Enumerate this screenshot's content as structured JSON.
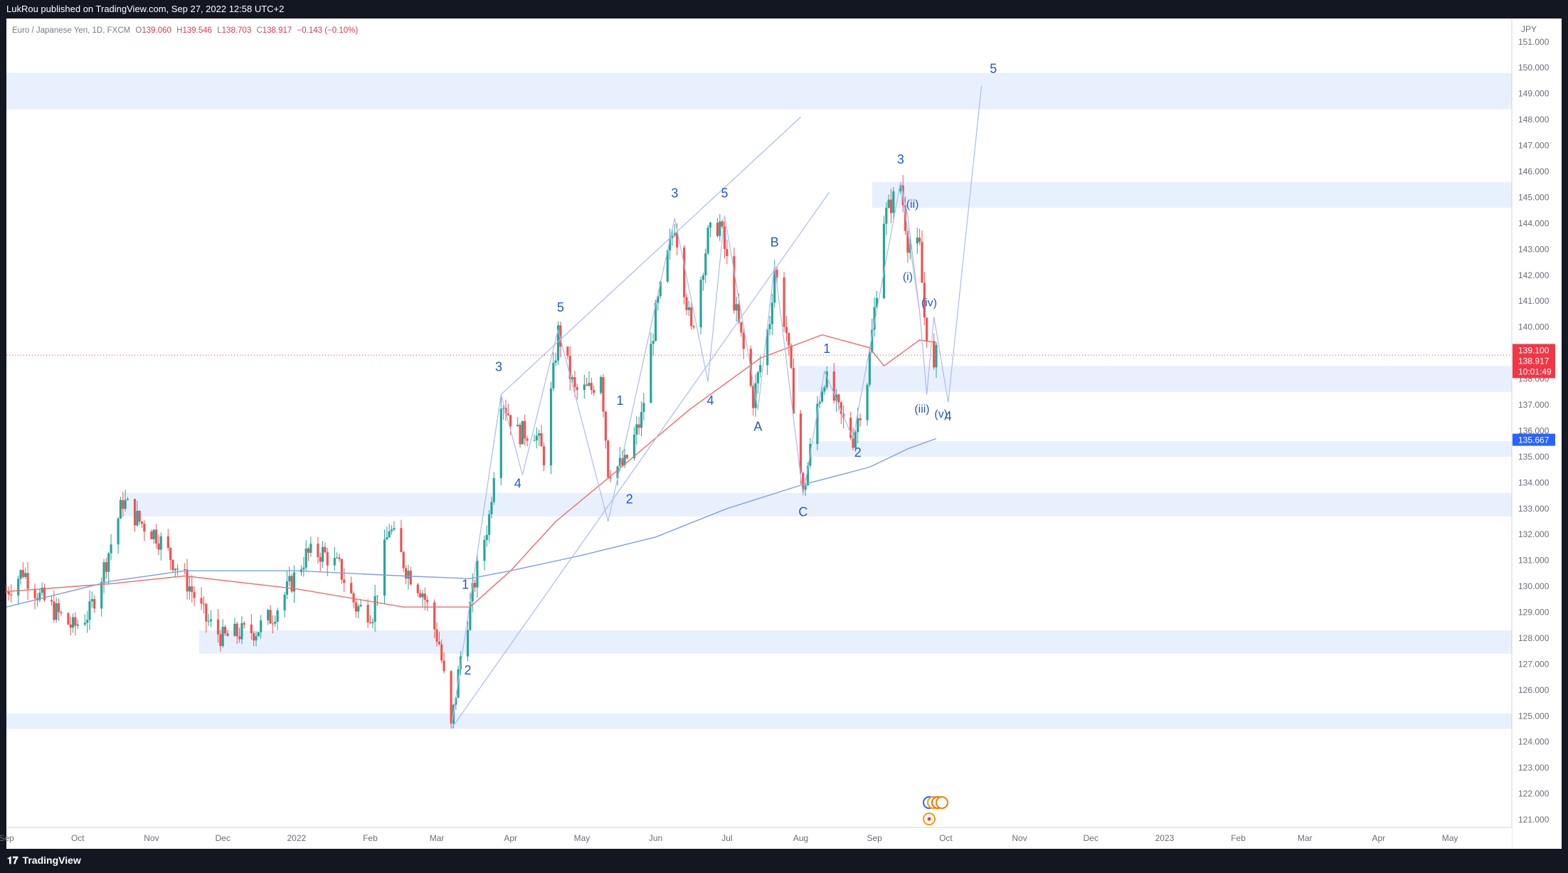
{
  "header": {
    "publisher_line": "LukRou published on TradingView.com, Sep 27, 2022 12:58 UTC+2"
  },
  "footer": {
    "brand": "TradingView",
    "brand_icon": "tradingview-logo-icon"
  },
  "colors": {
    "bull": "#26a69a",
    "bear": "#ef5350",
    "zone": "#e8f0fe",
    "wave_line": "#aabcec",
    "wave_label": "#2159c9",
    "ma_fast": "#ef6b6b",
    "ma_slow": "#7ea0e0",
    "price_tag": "#f23645",
    "ma_tag": "#2962ff"
  },
  "symbol_bar": {
    "name": "Euro / Japanese Yen, 1D, FXCM",
    "o_label": "O",
    "o_value": "139.060",
    "h_label": "H",
    "h_value": "139.546",
    "l_label": "L",
    "l_value": "138.703",
    "c_label": "C",
    "c_value": "138.917",
    "change": "−0.143 (−0.10%)"
  },
  "price_tags": {
    "last_price": "139.100",
    "close_price": "138.917",
    "countdown": "10:01:49",
    "ma_value": "135.667"
  },
  "chart_data": {
    "type": "candlestick",
    "currency": "JPY",
    "ylim": [
      120.7,
      151.9
    ],
    "y_ticks": [
      "121.000",
      "122.000",
      "123.000",
      "124.000",
      "125.000",
      "126.000",
      "127.000",
      "128.000",
      "129.000",
      "130.000",
      "131.000",
      "132.000",
      "133.000",
      "134.000",
      "135.000",
      "136.000",
      "137.000",
      "138.000",
      "139.000",
      "140.000",
      "141.000",
      "142.000",
      "143.000",
      "144.000",
      "145.000",
      "146.000",
      "147.000",
      "148.000",
      "149.000",
      "150.000",
      "151.000"
    ],
    "x_range": [
      "2021-09-01",
      "2023-05-27"
    ],
    "x_ticks": [
      {
        "date": "2021-09-01",
        "label": "Sep"
      },
      {
        "date": "2021-10-01",
        "label": "Oct"
      },
      {
        "date": "2021-11-01",
        "label": "Nov"
      },
      {
        "date": "2021-12-01",
        "label": "Dec"
      },
      {
        "date": "2022-01-01",
        "label": "2022"
      },
      {
        "date": "2022-02-01",
        "label": "Feb"
      },
      {
        "date": "2022-03-01",
        "label": "Mar"
      },
      {
        "date": "2022-04-01",
        "label": "Apr"
      },
      {
        "date": "2022-05-01",
        "label": "May"
      },
      {
        "date": "2022-06-01",
        "label": "Jun"
      },
      {
        "date": "2022-07-01",
        "label": "Jul"
      },
      {
        "date": "2022-08-01",
        "label": "Aug"
      },
      {
        "date": "2022-09-01",
        "label": "Sep"
      },
      {
        "date": "2022-10-01",
        "label": "Oct"
      },
      {
        "date": "2022-11-01",
        "label": "Nov"
      },
      {
        "date": "2022-12-01",
        "label": "Dec"
      },
      {
        "date": "2023-01-01",
        "label": "2023"
      },
      {
        "date": "2023-02-01",
        "label": "Feb"
      },
      {
        "date": "2023-03-01",
        "label": "Mar"
      },
      {
        "date": "2023-04-01",
        "label": "Apr"
      },
      {
        "date": "2023-05-01",
        "label": "May"
      }
    ],
    "price_path": [
      [
        "2021-09-01",
        129.8
      ],
      [
        "2021-09-08",
        130.6
      ],
      [
        "2021-09-15",
        129.6
      ],
      [
        "2021-09-22",
        129.0
      ],
      [
        "2021-09-29",
        128.4
      ],
      [
        "2021-10-06",
        129.0
      ],
      [
        "2021-10-13",
        131.0
      ],
      [
        "2021-10-20",
        133.3
      ],
      [
        "2021-10-27",
        132.5
      ],
      [
        "2021-11-03",
        132.0
      ],
      [
        "2021-11-10",
        131.0
      ],
      [
        "2021-11-17",
        130.0
      ],
      [
        "2021-11-24",
        128.7
      ],
      [
        "2021-12-01",
        128.0
      ],
      [
        "2021-12-08",
        128.2
      ],
      [
        "2021-12-15",
        128.3
      ],
      [
        "2021-12-22",
        128.9
      ],
      [
        "2021-12-29",
        130.0
      ],
      [
        "2022-01-05",
        131.2
      ],
      [
        "2022-01-12",
        131.3
      ],
      [
        "2022-01-19",
        130.7
      ],
      [
        "2022-01-26",
        129.2
      ],
      [
        "2022-02-02",
        129.0
      ],
      [
        "2022-02-09",
        132.3
      ],
      [
        "2022-02-16",
        130.7
      ],
      [
        "2022-02-23",
        129.8
      ],
      [
        "2022-03-02",
        127.8
      ],
      [
        "2022-03-07",
        124.5
      ],
      [
        "2022-03-11",
        127.3
      ],
      [
        "2022-03-17",
        130.2
      ],
      [
        "2022-03-23",
        132.7
      ],
      [
        "2022-03-28",
        137.3
      ],
      [
        "2022-04-04",
        135.9
      ],
      [
        "2022-04-11",
        136.0
      ],
      [
        "2022-04-15",
        135.0
      ],
      [
        "2022-04-21",
        139.8
      ],
      [
        "2022-04-28",
        137.5
      ],
      [
        "2022-05-05",
        137.6
      ],
      [
        "2022-05-09",
        138.3
      ],
      [
        "2022-05-12",
        134.5
      ],
      [
        "2022-05-19",
        134.7
      ],
      [
        "2022-05-26",
        136.5
      ],
      [
        "2022-06-01",
        140.5
      ],
      [
        "2022-06-09",
        144.0
      ],
      [
        "2022-06-16",
        139.8
      ],
      [
        "2022-06-23",
        143.5
      ],
      [
        "2022-06-28",
        144.0
      ],
      [
        "2022-07-05",
        140.5
      ],
      [
        "2022-07-12",
        137.2
      ],
      [
        "2022-07-19",
        140.3
      ],
      [
        "2022-07-21",
        142.3
      ],
      [
        "2022-07-26",
        139.8
      ],
      [
        "2022-08-02",
        133.5
      ],
      [
        "2022-08-08",
        137.0
      ],
      [
        "2022-08-11",
        138.1
      ],
      [
        "2022-08-18",
        136.5
      ],
      [
        "2022-08-23",
        135.7
      ],
      [
        "2022-08-29",
        138.0
      ],
      [
        "2022-09-05",
        144.2
      ],
      [
        "2022-09-12",
        145.5
      ],
      [
        "2022-09-15",
        143.3
      ],
      [
        "2022-09-20",
        143.0
      ],
      [
        "2022-09-22",
        140.4
      ],
      [
        "2022-09-26",
        138.2
      ],
      [
        "2022-09-27",
        138.9
      ]
    ],
    "moving_averages": [
      {
        "points": [
          [
            "2021-09-01",
            129.8
          ],
          [
            "2021-10-15",
            130.1
          ],
          [
            "2021-11-15",
            130.4
          ],
          [
            "2022-01-01",
            129.9
          ],
          [
            "2022-02-15",
            129.2
          ],
          [
            "2022-03-15",
            129.2
          ],
          [
            "2022-04-01",
            130.6
          ],
          [
            "2022-04-20",
            132.5
          ],
          [
            "2022-05-15",
            134.4
          ],
          [
            "2022-06-15",
            136.8
          ],
          [
            "2022-07-15",
            138.8
          ],
          [
            "2022-08-10",
            139.7
          ],
          [
            "2022-08-30",
            139.2
          ],
          [
            "2022-09-05",
            138.5
          ],
          [
            "2022-09-20",
            139.5
          ],
          [
            "2022-09-27",
            139.4
          ]
        ]
      },
      {
        "points": [
          [
            "2021-09-01",
            129.2
          ],
          [
            "2021-10-15",
            130.2
          ],
          [
            "2021-11-15",
            130.6
          ],
          [
            "2022-01-01",
            130.6
          ],
          [
            "2022-02-15",
            130.4
          ],
          [
            "2022-03-15",
            130.3
          ],
          [
            "2022-04-01",
            130.6
          ],
          [
            "2022-05-01",
            131.2
          ],
          [
            "2022-06-01",
            131.9
          ],
          [
            "2022-07-01",
            133.0
          ],
          [
            "2022-08-01",
            133.9
          ],
          [
            "2022-08-30",
            134.6
          ],
          [
            "2022-09-15",
            135.3
          ],
          [
            "2022-09-27",
            135.7
          ]
        ]
      }
    ],
    "zones": [
      {
        "from": "2021-09-01",
        "to": "2023-05-27",
        "low": 148.4,
        "high": 149.8
      },
      {
        "from": "2022-08-31",
        "to": "2023-05-27",
        "low": 144.6,
        "high": 145.6
      },
      {
        "from": "2022-07-31",
        "to": "2023-05-27",
        "low": 137.5,
        "high": 138.5
      },
      {
        "from": "2022-08-06",
        "to": "2023-05-27",
        "low": 135.0,
        "high": 135.6
      },
      {
        "from": "2021-10-20",
        "to": "2023-05-27",
        "low": 132.7,
        "high": 133.6
      },
      {
        "from": "2021-11-21",
        "to": "2023-05-27",
        "low": 127.4,
        "high": 128.3
      },
      {
        "from": "2021-09-01",
        "to": "2023-05-27",
        "low": 124.5,
        "high": 125.1
      }
    ],
    "wave_lines": [
      {
        "points": [
          [
            "2022-03-07",
            124.5
          ],
          [
            "2022-03-28",
            137.4
          ],
          [
            "2022-04-06",
            134.3
          ],
          [
            "2022-04-21",
            139.9
          ],
          [
            "2022-05-12",
            132.5
          ],
          [
            "2022-06-09",
            144.2
          ],
          [
            "2022-06-23",
            137.9
          ],
          [
            "2022-06-30",
            144.3
          ]
        ]
      },
      {
        "points": [
          [
            "2022-03-28",
            137.4
          ],
          [
            "2022-08-01",
            148.1
          ]
        ]
      },
      {
        "points": [
          [
            "2022-03-07",
            124.5
          ],
          [
            "2022-08-13",
            145.2
          ]
        ]
      },
      {
        "points": [
          [
            "2022-06-30",
            144.3
          ],
          [
            "2022-07-14",
            136.8
          ],
          [
            "2022-07-21",
            142.4
          ],
          [
            "2022-08-02",
            133.5
          ],
          [
            "2022-08-11",
            138.3
          ],
          [
            "2022-08-23",
            135.7
          ],
          [
            "2022-09-12",
            145.6
          ],
          [
            "2022-09-20",
            140.6
          ],
          [
            "2022-09-23",
            137.4
          ],
          [
            "2022-09-26",
            140.4
          ],
          [
            "2022-10-02",
            137.1
          ],
          [
            "2022-10-16",
            149.3
          ]
        ]
      },
      {
        "points": [
          [
            "2022-09-12",
            145.6
          ],
          [
            "2022-09-15",
            144.3
          ],
          [
            "2022-09-20",
            140.6
          ]
        ]
      }
    ],
    "wave_labels": [
      {
        "text": "2",
        "date": "2022-03-14",
        "price": 126.6
      },
      {
        "text": "1",
        "date": "2022-03-13",
        "price": 129.9
      },
      {
        "text": "3",
        "date": "2022-03-27",
        "price": 138.3
      },
      {
        "text": "4",
        "date": "2022-04-04",
        "price": 133.8
      },
      {
        "text": "5",
        "date": "2022-04-22",
        "price": 140.6
      },
      {
        "text": "1",
        "date": "2022-05-17",
        "price": 137.0
      },
      {
        "text": "2",
        "date": "2022-05-21",
        "price": 133.2
      },
      {
        "text": "3",
        "date": "2022-06-09",
        "price": 145.0
      },
      {
        "text": "4",
        "date": "2022-06-24",
        "price": 137.0
      },
      {
        "text": "5",
        "date": "2022-06-30",
        "price": 145.0
      },
      {
        "text": "A",
        "date": "2022-07-14",
        "price": 136.0
      },
      {
        "text": "B",
        "date": "2022-07-21",
        "price": 143.1
      },
      {
        "text": "C",
        "date": "2022-08-02",
        "price": 132.7
      },
      {
        "text": "1",
        "date": "2022-08-12",
        "price": 139.0
      },
      {
        "text": "2",
        "date": "2022-08-25",
        "price": 135.0
      },
      {
        "text": "3",
        "date": "2022-09-12",
        "price": 146.3
      },
      {
        "text": "(ii)",
        "date": "2022-09-17",
        "price": 144.6
      },
      {
        "text": "(i)",
        "date": "2022-09-15",
        "price": 141.8
      },
      {
        "text": "(iv)",
        "date": "2022-09-24",
        "price": 140.8
      },
      {
        "text": "(iii)",
        "date": "2022-09-21",
        "price": 136.7
      },
      {
        "text": "(v)",
        "date": "2022-09-29",
        "price": 136.5
      },
      {
        "text": "4",
        "date": "2022-10-02",
        "price": 136.4
      },
      {
        "text": "5",
        "date": "2022-10-21",
        "price": 149.8
      }
    ],
    "event_icons": [
      "economic-calendar-icon",
      "dividend-icon",
      "news-icon",
      "earnings-icon"
    ]
  }
}
